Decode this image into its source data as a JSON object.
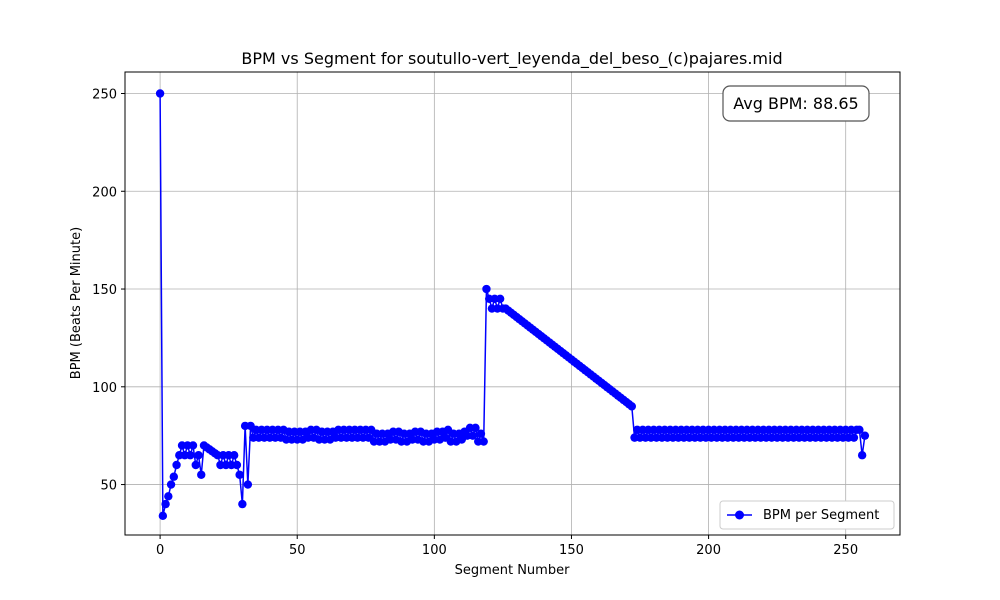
{
  "chart_data": {
    "type": "line",
    "title": "BPM vs Segment for soutullo-vert_leyenda_del_beso_(c)pajares.mid",
    "xlabel": "Segment Number",
    "ylabel": "BPM (Beats Per Minute)",
    "xlim": [
      -12.8,
      269.8
    ],
    "ylim": [
      24.2,
      261
    ],
    "xticks": [
      0,
      50,
      100,
      150,
      200,
      250
    ],
    "yticks": [
      50,
      100,
      150,
      200,
      250
    ],
    "grid": true,
    "legend_position": "lower-right",
    "annotation": "Avg BPM: 88.65",
    "series": [
      {
        "name": "BPM per Segment",
        "color": "#0000ff",
        "marker": "circle",
        "segments": [
          {
            "type": "points",
            "x": [
              0,
              1,
              2,
              3,
              4,
              5,
              6,
              7,
              8,
              9,
              10,
              11,
              12,
              13,
              14,
              15,
              16,
              17,
              18,
              19,
              20,
              21,
              22,
              23,
              24,
              25,
              26,
              27,
              28,
              29,
              30,
              31,
              32,
              33,
              34,
              35,
              36,
              37,
              38,
              39,
              40,
              41,
              42,
              43,
              44,
              45,
              46,
              47,
              48,
              49,
              50,
              51,
              52,
              53,
              54,
              55,
              56,
              57,
              58,
              59,
              60,
              61,
              62,
              63,
              64,
              65,
              66,
              67,
              68,
              69,
              70,
              71,
              72,
              73,
              74,
              75,
              76,
              77,
              78,
              79,
              80,
              81,
              82,
              83,
              84,
              85,
              86,
              87,
              88,
              89,
              90,
              91,
              92,
              93,
              94,
              95,
              96,
              97,
              98,
              99,
              100,
              101,
              102,
              103,
              104,
              105,
              106,
              107,
              108,
              109,
              110,
              111,
              112,
              113,
              114,
              115,
              116,
              117,
              118
            ],
            "y": [
              250,
              34,
              40,
              44,
              50,
              54,
              60,
              65,
              70,
              65,
              70,
              65,
              70,
              60,
              65,
              55,
              70,
              69,
              68,
              67,
              66,
              65,
              60,
              65,
              60,
              65,
              60,
              65,
              60,
              55,
              40,
              80,
              50,
              80,
              74,
              78,
              74,
              78,
              74,
              78,
              74,
              78,
              74,
              78,
              74,
              78,
              73,
              77,
              73,
              77,
              73,
              77,
              73,
              77,
              74,
              78,
              74,
              78,
              73,
              77,
              73,
              77,
              73,
              77,
              74,
              78,
              74,
              78,
              74,
              78,
              74,
              78,
              74,
              78,
              74,
              78,
              74,
              78,
              72,
              76,
              72,
              76,
              72,
              76,
              73,
              77,
              73,
              77,
              72,
              76,
              72,
              76,
              73,
              77,
              73,
              77,
              72,
              76,
              72,
              76,
              73,
              77,
              73,
              77,
              74,
              78,
              72,
              76,
              72,
              76,
              73,
              77,
              75,
              79,
              75,
              79,
              72,
              76,
              72
            ]
          },
          {
            "type": "descending",
            "x_start": 119,
            "x_end": 172,
            "y": {
              "119": 150,
              "120": 145,
              "121": 140,
              "122": 145,
              "123": 140,
              "124": 145,
              "125": 140
            },
            "y_start": 140,
            "y_end": 90
          },
          {
            "type": "oscillating",
            "x_start": 173,
            "x_end": 254,
            "y_low": 74,
            "y_high": 78
          },
          {
            "type": "points",
            "x": [
              255,
              256,
              257
            ],
            "y": [
              78,
              65,
              75
            ]
          }
        ]
      }
    ]
  }
}
